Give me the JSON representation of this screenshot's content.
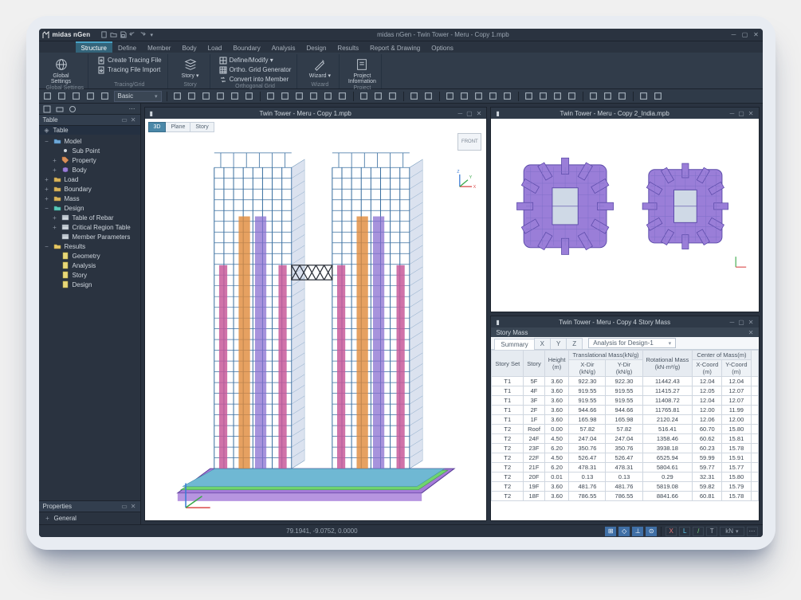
{
  "app": {
    "name": "midas nGen",
    "document_title": "midas nGen - Twin Tower - Meru - Copy 1.mpb"
  },
  "qat": [
    "new",
    "open",
    "save",
    "undo",
    "redo",
    "dropdown"
  ],
  "ribbon_tabs": [
    "Structure",
    "Define",
    "Member",
    "Body",
    "Load",
    "Boundary",
    "Analysis",
    "Design",
    "Results",
    "Report & Drawing",
    "Options"
  ],
  "ribbon_active_tab": "Structure",
  "ribbon_groups": [
    {
      "label": "Global Settings",
      "big": [
        {
          "key": "global-settings",
          "label": "Global\nSettings",
          "icon": "globe"
        }
      ]
    },
    {
      "label": "Tracing/Grid",
      "rows": [
        {
          "key": "create-tracing",
          "label": "Create Tracing File",
          "icon": "file-plus"
        },
        {
          "key": "tracing-import",
          "label": "Tracing File Import",
          "icon": "import"
        }
      ]
    },
    {
      "label": "Story",
      "big": [
        {
          "key": "story",
          "label": "Story",
          "icon": "layers",
          "drop": true
        }
      ]
    },
    {
      "label": "Orthogonal Grid",
      "rows": [
        {
          "key": "define-modify",
          "label": "Define/Modify",
          "icon": "grid",
          "drop": true
        },
        {
          "key": "ortho-gen",
          "label": "Ortho. Grid Generator",
          "icon": "grid-gen"
        },
        {
          "key": "convert-member",
          "label": "Convert into Member",
          "icon": "convert"
        }
      ]
    },
    {
      "label": "Wizard",
      "big": [
        {
          "key": "wizard",
          "label": "Wizard",
          "icon": "wizard",
          "drop": true
        }
      ]
    },
    {
      "label": "Project",
      "big": [
        {
          "key": "project-info",
          "label": "Project\nInformation",
          "icon": "info"
        }
      ]
    }
  ],
  "toolbar": {
    "combo_value": "Basic",
    "buttons_left": [
      "lock",
      "dropdown",
      "cube",
      "layers",
      "filter"
    ],
    "buttons_right": [
      "sel-win",
      "sel-poly",
      "sel-cross",
      "sel-prev",
      "sel-all",
      "sel-none",
      "sep",
      "beam",
      "col",
      "brace",
      "slab",
      "wall",
      "opening",
      "sep",
      "grid-x",
      "grid-y",
      "grid-z",
      "sep",
      "ucs",
      "plane",
      "sep",
      "snap-end",
      "snap-mid",
      "snap-int",
      "snap-perp",
      "snap-cen",
      "sep",
      "view-iso",
      "view-top",
      "view-front",
      "view-right",
      "sep",
      "hide",
      "ghost",
      "color",
      "sep",
      "copy",
      "paste"
    ]
  },
  "tree_panel": {
    "title": "Table",
    "root": "Table",
    "nodes": [
      {
        "d": 0,
        "tw": "−",
        "icon": "folder-blue",
        "label": "Model"
      },
      {
        "d": 1,
        "tw": "",
        "icon": "dot",
        "label": "Sub Point"
      },
      {
        "d": 1,
        "tw": "+",
        "icon": "tag",
        "label": "Property"
      },
      {
        "d": 1,
        "tw": "+",
        "icon": "cube",
        "label": "Body"
      },
      {
        "d": 0,
        "tw": "+",
        "icon": "folder",
        "label": "Load"
      },
      {
        "d": 0,
        "tw": "+",
        "icon": "folder",
        "label": "Boundary"
      },
      {
        "d": 0,
        "tw": "+",
        "icon": "folder",
        "label": "Mass"
      },
      {
        "d": 0,
        "tw": "−",
        "icon": "folder-teal",
        "label": "Design"
      },
      {
        "d": 1,
        "tw": "+",
        "icon": "table",
        "label": "Table of Rebar"
      },
      {
        "d": 1,
        "tw": "+",
        "icon": "table",
        "label": "Critical Region Table"
      },
      {
        "d": 1,
        "tw": "",
        "icon": "table",
        "label": "Member Parameters"
      },
      {
        "d": 0,
        "tw": "−",
        "icon": "folder-gold",
        "label": "Results"
      },
      {
        "d": 1,
        "tw": "",
        "icon": "sheet",
        "label": "Geometry"
      },
      {
        "d": 1,
        "tw": "",
        "icon": "sheet",
        "label": "Analysis"
      },
      {
        "d": 1,
        "tw": "",
        "icon": "sheet",
        "label": "Story"
      },
      {
        "d": 1,
        "tw": "",
        "icon": "sheet",
        "label": "Design"
      }
    ]
  },
  "properties_panel": {
    "title": "Properties",
    "section": "General"
  },
  "windows": {
    "view3d": {
      "title": "Twin Tower - Meru - Copy 1.mpb",
      "tabs": [
        "3D",
        "Plane",
        "Story"
      ],
      "active_tab": "3D",
      "view_cube_label": "FRONT",
      "building": {
        "base_color": "#6fd36f",
        "foundation_colors": [
          "#a57bd8",
          "#7bd67b",
          "#6fb8d3"
        ],
        "tower_frame": "#3a6fa0",
        "tower_accent1": "#e08a3a",
        "tower_accent2": "#c85a9a",
        "tower_accent3": "#8a6fd0",
        "link_bridge": "#2a2f38"
      }
    },
    "plan": {
      "title": "Twin Tower - Meru - Copy 2_India.mpb",
      "colors": {
        "outline": "#5a4aa8",
        "fill": "#9a7ed8",
        "grid": "#7f6fc8",
        "core": "#cfd9e6"
      }
    },
    "table": {
      "title": "Twin Tower - Meru - Copy 4 Story Mass",
      "panel_label": "Story Mass",
      "subtabs": [
        "Summary",
        "X",
        "Y",
        "Z"
      ],
      "active_subtab": "Summary",
      "combo_value": "Analysis for Design-1",
      "columns_group": [
        {
          "label": "Story Set",
          "span": 1,
          "rs": 2
        },
        {
          "label": "Story",
          "span": 1,
          "rs": 2
        },
        {
          "label": "Height\n(m)",
          "span": 1,
          "rs": 2
        },
        {
          "label": "Translational Mass(kN/g)",
          "span": 2
        },
        {
          "label": "Rotational Mass\n(kN·m²/g)",
          "span": 1,
          "rs": 2
        },
        {
          "label": "Center of Mass(m)",
          "span": 2
        }
      ],
      "columns_sub": [
        "X-Dir\n(kN/g)",
        "Y-Dir\n(kN/g)",
        "X-Coord\n(m)",
        "Y-Coord\n(m)"
      ],
      "rows": [
        [
          "T1",
          "5F",
          "3.60",
          "922.30",
          "922.30",
          "11442.43",
          "12.04",
          "12.04"
        ],
        [
          "T1",
          "4F",
          "3.60",
          "919.55",
          "919.55",
          "11415.27",
          "12.05",
          "12.07"
        ],
        [
          "T1",
          "3F",
          "3.60",
          "919.55",
          "919.55",
          "11408.72",
          "12.04",
          "12.07"
        ],
        [
          "T1",
          "2F",
          "3.60",
          "944.66",
          "944.66",
          "11765.81",
          "12.00",
          "11.99"
        ],
        [
          "T1",
          "1F",
          "3.60",
          "165.98",
          "165.98",
          "2120.24",
          "12.06",
          "12.00"
        ],
        [
          "T2",
          "Roof",
          "0.00",
          "57.82",
          "57.82",
          "516.41",
          "60.70",
          "15.80"
        ],
        [
          "T2",
          "24F",
          "4.50",
          "247.04",
          "247.04",
          "1358.46",
          "60.62",
          "15.81"
        ],
        [
          "T2",
          "23F",
          "6.20",
          "350.76",
          "350.76",
          "3938.18",
          "60.23",
          "15.78"
        ],
        [
          "T2",
          "22F",
          "4.50",
          "526.47",
          "526.47",
          "6525.94",
          "59.99",
          "15.91"
        ],
        [
          "T2",
          "21F",
          "6.20",
          "478.31",
          "478.31",
          "5804.61",
          "59.77",
          "15.77"
        ],
        [
          "T2",
          "20F",
          "0.01",
          "0.13",
          "0.13",
          "0.29",
          "32.31",
          "15.80"
        ],
        [
          "T2",
          "19F",
          "3.60",
          "481.76",
          "481.76",
          "5819.08",
          "59.82",
          "15.79"
        ],
        [
          "T2",
          "18F",
          "3.60",
          "786.55",
          "786.55",
          "8841.66",
          "60.81",
          "15.78"
        ]
      ]
    }
  },
  "statusbar": {
    "coords": "79.1941, -9.0752, 0.0000",
    "unit": "kN",
    "buttons": [
      "grid",
      "snap",
      "ortho",
      "osnap",
      "sep",
      "x",
      "l",
      "slash",
      "t"
    ]
  },
  "colors": {
    "bg_main": "#2f3a48",
    "bg_panel": "#2a3340",
    "accent": "#49a3c7",
    "tab_active": "#33647a"
  }
}
